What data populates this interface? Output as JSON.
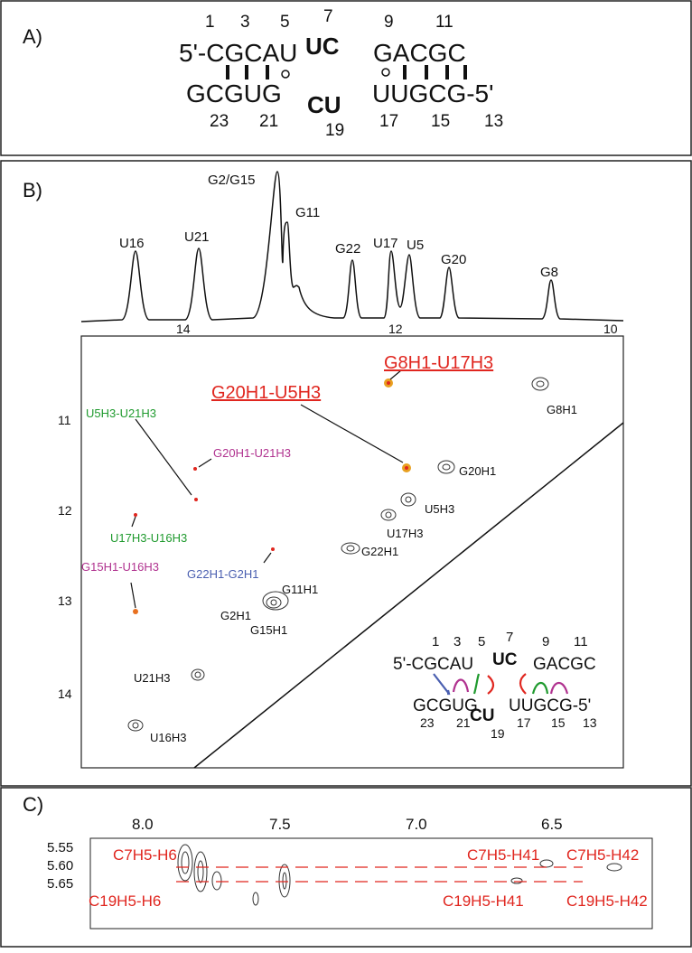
{
  "panel_a": {
    "label": "A)",
    "top_left": "5'-CGCAU",
    "top_bulge": "UC",
    "top_right": "GACGC",
    "bottom_left": "GCGUG",
    "bottom_bulge": "CU",
    "bottom_right": "UUGCG-5'",
    "top_numbers": [
      "1",
      "3",
      "5",
      "7",
      "9",
      "11"
    ],
    "bottom_numbers": [
      "23",
      "21",
      "19",
      "17",
      "15",
      "13"
    ]
  },
  "panel_b": {
    "label": "B)",
    "peak_labels": [
      "U16",
      "U21",
      "G2/G15",
      "G11",
      "G22",
      "U17",
      "U5",
      "G20",
      "G8"
    ],
    "axis_1d": [
      "14",
      "12",
      "10"
    ],
    "y_ticks": [
      "11",
      "12",
      "13",
      "14"
    ],
    "cross_peaks": {
      "g8h1_u17h3": "G8H1-U17H3",
      "g20h1_u5h3": "G20H1-U5H3",
      "u5h3_u21h3": "U5H3-U21H3",
      "g20h1_u21h3": "G20H1-U21H3",
      "u17h3_u16h3": "U17H3-U16H3",
      "g15h1_u16h3": "G15H1-U16H3",
      "g22h1_g2h1": "G22H1-G2H1"
    },
    "diagonal_peaks": [
      "G8H1",
      "G20H1",
      "U5H3",
      "U17H3",
      "G22H1",
      "G11H1",
      "G2H1",
      "G15H1",
      "U21H3",
      "U16H3"
    ],
    "inset": {
      "top_left": "5'-CGCAU",
      "top_bulge": "UC",
      "top_right": "GACGC",
      "bottom_left": "GCGUG",
      "bottom_bulge": "CU",
      "bottom_right": "UUGCG-5'",
      "top_numbers": [
        "1",
        "3",
        "5",
        "7",
        "9",
        "11"
      ],
      "bottom_numbers": [
        "23",
        "21",
        "19",
        "17",
        "15",
        "13"
      ]
    }
  },
  "panel_c": {
    "label": "C)",
    "x_ticks": [
      "8.0",
      "7.5",
      "7.0",
      "6.5"
    ],
    "y_ticks": [
      "5.55",
      "5.60",
      "5.65"
    ],
    "labels": [
      "C7H5-H6",
      "C19H5-H6",
      "C7H5-H41",
      "C19H5-H41",
      "C7H5-H42",
      "C19H5-H42"
    ]
  }
}
